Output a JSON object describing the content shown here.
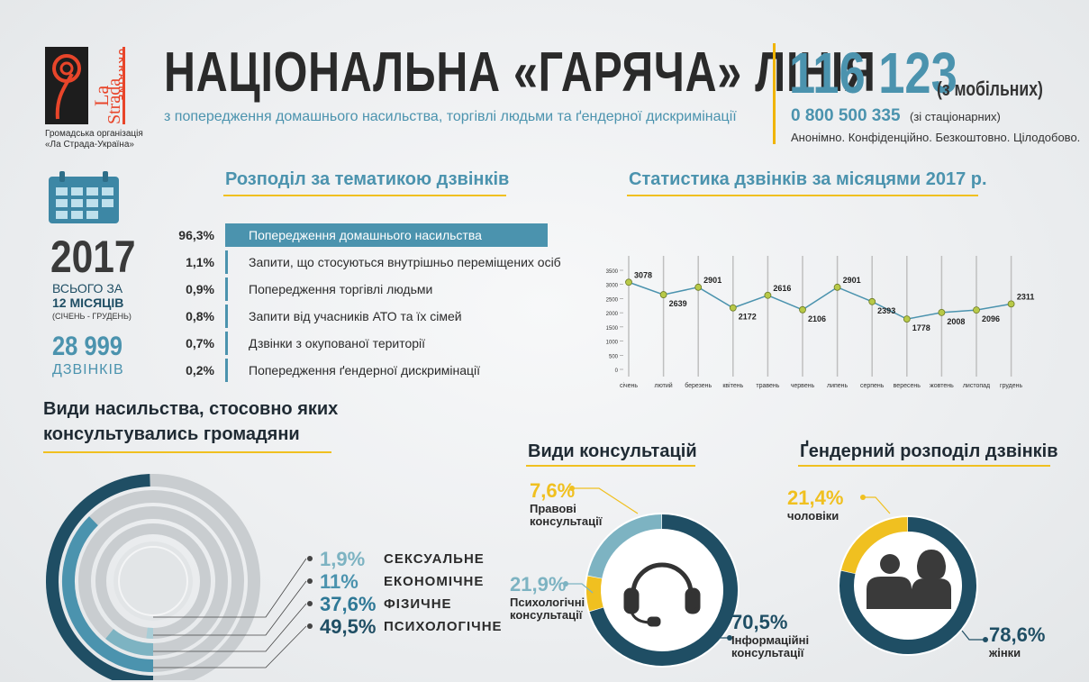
{
  "logo": {
    "brand_la": "La",
    "brand_strada": "Strada",
    "brand_country": "UKRAINE",
    "caption_line1": "Громадська організація",
    "caption_line2": "«Ла Страда-Україна»"
  },
  "header": {
    "title": "НАЦІОНАЛЬНА «ГАРЯЧА» ЛІНІЯ",
    "subtitle": "з попередження домашнього насильства, торгівлі людьми та ґендерної дискримінації",
    "phone_main": "116 123",
    "phone_main_note": "(з мобільних)",
    "phone_alt": "0 800 500 335",
    "phone_alt_note": "(зі стаціонарних)",
    "tagline": "Анонімно. Конфіденційно. Безкоштовно. Цілодобово."
  },
  "summary": {
    "year": "2017",
    "line1": "ВСЬОГО ЗА",
    "line2": "12 МІСЯЦІВ",
    "line3": "(СІЧЕНЬ - ГРУДЕНЬ)",
    "calls": "28 999",
    "calls_label": "ДЗВІНКІВ"
  },
  "colors": {
    "accent": "#4b93ae",
    "dark": "#1f4e64",
    "yellow": "#f0c020",
    "light": "#cfd5d9"
  },
  "chart_data": [
    {
      "type": "bar",
      "title": "Розподіл за тематикою дзвінків",
      "categories": [
        "Попередження домашнього насильства",
        "Запити, що стосуються внутрішньо переміщених осіб",
        "Попередження торгівлі людьми",
        "Запити від учасників АТО та їх сімей",
        "Дзвінки з окупованої території",
        "Попередження ґендерної дискримінації"
      ],
      "values": [
        96.3,
        1.1,
        0.9,
        0.8,
        0.7,
        0.2
      ],
      "labels": [
        "96,3%",
        "1,1%",
        "0,9%",
        "0,8%",
        "0,7%",
        "0,2%"
      ]
    },
    {
      "type": "line",
      "title": "Статистика дзвінків за місяцями 2017 р.",
      "x": [
        "січень",
        "лютий",
        "березень",
        "квітень",
        "травень",
        "червень",
        "липень",
        "серпень",
        "вересень",
        "жовтень",
        "листопад",
        "грудень"
      ],
      "y": [
        3078,
        2639,
        2901,
        2172,
        2616,
        2106,
        2901,
        2393,
        1778,
        2008,
        2096,
        2311
      ],
      "ylim": [
        0,
        3500
      ],
      "yticks": [
        "0",
        "500",
        "1000",
        "1500",
        "2000",
        "2500",
        "3000",
        "3500"
      ],
      "grid": "vertical"
    },
    {
      "type": "pie",
      "title": "Види насильства, стосовно яких консультувались громадяни",
      "series": [
        {
          "name": "СЕКСУАЛЬНЕ",
          "label": "1,9%",
          "value": 1.9
        },
        {
          "name": "ЕКОНОМІЧНЕ",
          "label": "11%",
          "value": 11
        },
        {
          "name": "ФІЗИЧНЕ",
          "label": "37,6%",
          "value": 37.6
        },
        {
          "name": "ПСИХОЛОГІЧНЕ",
          "label": "49,5%",
          "value": 49.5
        }
      ]
    },
    {
      "type": "pie",
      "title": "Види консультацій",
      "series": [
        {
          "name": "Правові консультації",
          "label": "7,6%",
          "value": 7.6
        },
        {
          "name": "Психологічні консультації",
          "label": "21,9%",
          "value": 21.9
        },
        {
          "name": "Інформаційні консультації",
          "label": "70,5%",
          "value": 70.5
        }
      ]
    },
    {
      "type": "pie",
      "title": "Ґендерний розподіл дзвінків",
      "series": [
        {
          "name": "чоловіки",
          "label": "21,4%",
          "value": 21.4
        },
        {
          "name": "жінки",
          "label": "78,6%",
          "value": 78.6
        }
      ]
    }
  ],
  "violence_legend": [
    {
      "pct": "1,9%",
      "label": "СЕКСУАЛЬНЕ"
    },
    {
      "pct": "11%",
      "label": "ЕКОНОМІЧНЕ"
    },
    {
      "pct": "37,6%",
      "label": "ФІЗИЧНЕ"
    },
    {
      "pct": "49,5%",
      "label": "ПСИХОЛОГІЧНЕ"
    }
  ],
  "consult": {
    "legal_pct": "7,6%",
    "legal_l1": "Правові",
    "legal_l2": "консультації",
    "psych_pct": "21,9%",
    "psych_l1": "Психологічні",
    "psych_l2": "консультації",
    "info_pct": "70,5%",
    "info_l1": "Інформаційні",
    "info_l2": "консультації"
  },
  "gender": {
    "men_pct": "21,4%",
    "men_label": "чоловіки",
    "women_pct": "78,6%",
    "women_label": "жінки"
  }
}
